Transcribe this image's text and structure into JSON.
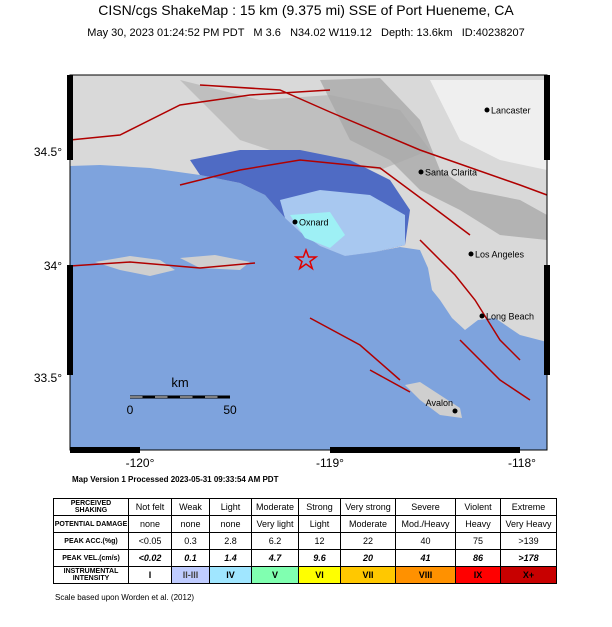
{
  "header": {
    "title": "CISN/cgs ShakeMap : 15 km (9.375 mi) SSE of Port Hueneme, CA",
    "subtitle": "May 30, 2023 01:24:52 PM PDT   M 3.6   N34.02 W119.12   Depth: 13.6km   ID:40238207"
  },
  "map": {
    "lat_labels": [
      "34.5°",
      "34°",
      "33.5°"
    ],
    "lon_labels": [
      "-120°",
      "-119°",
      "-118°"
    ],
    "places": [
      "Lancaster",
      "Santa Clarita",
      "Oxnard",
      "Los Angeles",
      "Long Beach",
      "Avalon"
    ],
    "scale": {
      "unit": "km",
      "start": "0",
      "end": "50"
    }
  },
  "footer": "Map Version 1 Processed 2023-05-31 09:33:54 AM PDT",
  "table": {
    "rows": [
      [
        "PERCEIVED SHAKING",
        "Not felt",
        "Weak",
        "Light",
        "Moderate",
        "Strong",
        "Very strong",
        "Severe",
        "Violent",
        "Extreme"
      ],
      [
        "POTENTIAL DAMAGE",
        "none",
        "none",
        "none",
        "Very light",
        "Light",
        "Moderate",
        "Mod./Heavy",
        "Heavy",
        "Very Heavy"
      ],
      [
        "PEAK ACC.(%g)",
        "<0.05",
        0.3,
        2.8,
        6.2,
        12,
        22,
        40,
        75,
        ">139"
      ],
      [
        "PEAK VEL.(cm/s)",
        "<0.02",
        0.1,
        1.4,
        4.7,
        9.6,
        20,
        41,
        86,
        ">178"
      ],
      [
        "INSTRUMENTAL INTENSITY",
        "I",
        "II-III",
        "IV",
        "V",
        "VI",
        "VII",
        "VIII",
        "IX",
        "X+"
      ]
    ]
  },
  "note": "Scale based upon Worden et al. (2012)"
}
